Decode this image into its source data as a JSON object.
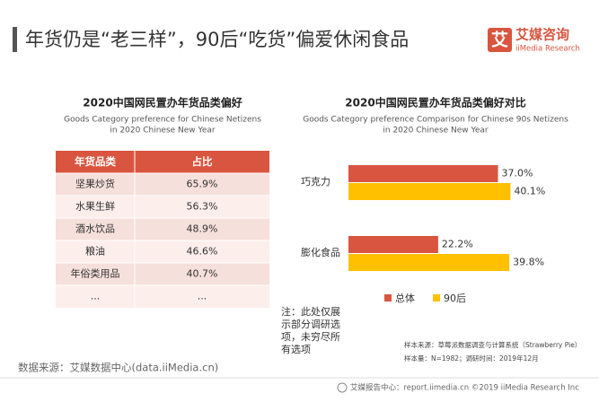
{
  "header": {
    "title": "年货仍是“老三样”，90后“吃货”偏爱休闲食品",
    "logo_mark": "艾",
    "logo_name": "艾媒咨询",
    "logo_sub": "iiMedia Research"
  },
  "table": {
    "title": "2020中国网民置办年货品类偏好",
    "subtitle": [
      "Goods Category preference for Chinese Netizens",
      "in 2020 Chinese New Year"
    ],
    "columns": [
      "年货品类",
      "占比"
    ],
    "rows": [
      [
        "坚果炒货",
        "65.9%"
      ],
      [
        "水果生鲜",
        "56.3%"
      ],
      [
        "酒水饮品",
        "48.9%"
      ],
      [
        "粮油",
        "46.6%"
      ],
      [
        "年俗类用品",
        "40.7%"
      ],
      [
        "...",
        "..."
      ]
    ]
  },
  "chart_data": {
    "type": "hbar",
    "title": "2020中国网民置办年货品类偏好对比",
    "subtitle": [
      "Goods Category preference Comparison for Chinese 90s Netizens",
      "in 2020 Chinese New Year"
    ],
    "categories": [
      "巧克力",
      "膨化食品"
    ],
    "series": [
      {
        "name": "总体",
        "color": "#d9553f",
        "values": [
          37.0,
          22.2
        ],
        "value_labels": [
          "37.0%",
          "22.2%"
        ]
      },
      {
        "name": "90后",
        "color": "#ffc000",
        "values": [
          40.1,
          39.8
        ],
        "value_labels": [
          "40.1%",
          "39.8%"
        ]
      }
    ],
    "xlim": [
      0,
      50
    ],
    "legend": "bottom"
  },
  "note": [
    "注：此处仅展",
    "示部分调研选",
    "项，未穷尽所",
    "有选项"
  ],
  "source": "数据来源：艾媒数据中心(data.iiMedia.cn)",
  "sample": [
    "样本来源：草莓派数据调查与计算系统（Strawberry Pie）",
    "样本量：N=1982；调研时间：2019年12月"
  ],
  "footer": "艾媒报告中心：report.iimedia.cn ©2019 iiMedia Research Inc"
}
